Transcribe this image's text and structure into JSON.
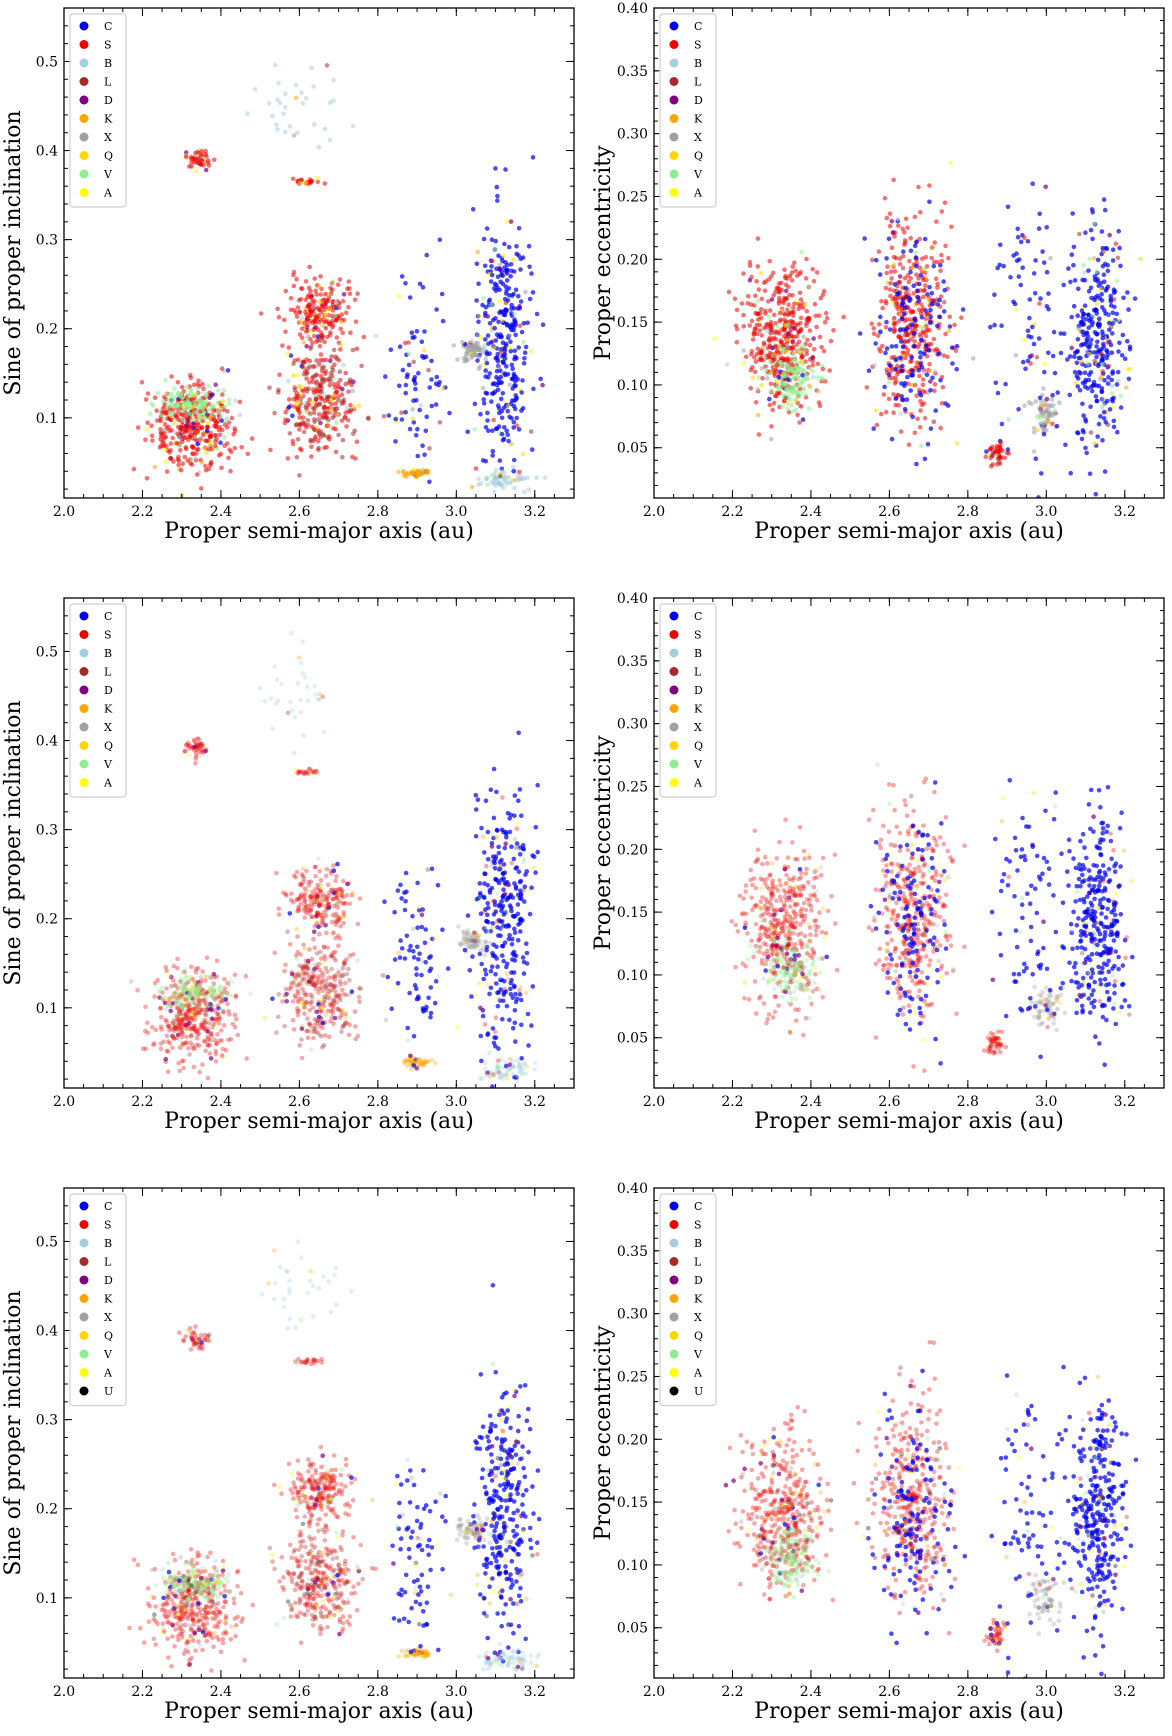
{
  "chart_data": [
    {
      "type": "scatter",
      "xlabel": "Proper semi-major axis (au)",
      "ylabel": "Sine of proper inclination",
      "xlim": [
        2.0,
        3.3
      ],
      "ylim": [
        0.01,
        0.56
      ],
      "xticks": [
        2.0,
        2.2,
        2.4,
        2.6,
        2.8,
        3.0,
        3.2
      ],
      "yticks": [
        0.1,
        0.2,
        0.3,
        0.4,
        0.5
      ],
      "legend_loc": "top-left",
      "series": [
        {
          "name": "C",
          "color": "#0000ee"
        },
        {
          "name": "S",
          "color": "#ee0000"
        },
        {
          "name": "B",
          "color": "#a6cee3"
        },
        {
          "name": "L",
          "color": "#a52a2a"
        },
        {
          "name": "D",
          "color": "#800080"
        },
        {
          "name": "K",
          "color": "#ffa500"
        },
        {
          "name": "X",
          "color": "#a0a0a0"
        },
        {
          "name": "Q",
          "color": "#ffd700"
        },
        {
          "name": "V",
          "color": "#90ee90"
        },
        {
          "name": "A",
          "color": "#ffff00"
        }
      ]
    },
    {
      "type": "scatter",
      "xlabel": "Proper semi-major axis (au)",
      "ylabel": "Proper eccentricity",
      "xlim": [
        2.0,
        3.3
      ],
      "ylim": [
        0.01,
        0.4
      ],
      "xticks": [
        2.0,
        2.2,
        2.4,
        2.6,
        2.8,
        3.0,
        3.2
      ],
      "yticks": [
        0.05,
        0.1,
        0.15,
        0.2,
        0.25,
        0.3,
        0.35,
        0.4
      ],
      "legend_loc": "top-left",
      "series": [
        {
          "name": "C",
          "color": "#0000ee"
        },
        {
          "name": "S",
          "color": "#ee0000"
        },
        {
          "name": "B",
          "color": "#a6cee3"
        },
        {
          "name": "L",
          "color": "#a52a2a"
        },
        {
          "name": "D",
          "color": "#800080"
        },
        {
          "name": "K",
          "color": "#ffa500"
        },
        {
          "name": "X",
          "color": "#a0a0a0"
        },
        {
          "name": "Q",
          "color": "#ffd700"
        },
        {
          "name": "V",
          "color": "#90ee90"
        },
        {
          "name": "A",
          "color": "#ffff00"
        }
      ]
    },
    {
      "type": "scatter",
      "xlabel": "Proper semi-major axis (au)",
      "ylabel": "Sine of proper inclination",
      "xlim": [
        2.0,
        3.3
      ],
      "ylim": [
        0.01,
        0.56
      ],
      "xticks": [
        2.0,
        2.2,
        2.4,
        2.6,
        2.8,
        3.0,
        3.2
      ],
      "yticks": [
        0.1,
        0.2,
        0.3,
        0.4,
        0.5
      ],
      "legend_loc": "top-left",
      "series": [
        {
          "name": "C",
          "color": "#0000ee"
        },
        {
          "name": "S",
          "color": "#ee0000"
        },
        {
          "name": "B",
          "color": "#a6cee3"
        },
        {
          "name": "L",
          "color": "#a52a2a"
        },
        {
          "name": "D",
          "color": "#800080"
        },
        {
          "name": "K",
          "color": "#ffa500"
        },
        {
          "name": "X",
          "color": "#a0a0a0"
        },
        {
          "name": "Q",
          "color": "#ffd700"
        },
        {
          "name": "V",
          "color": "#90ee90"
        },
        {
          "name": "A",
          "color": "#ffff00"
        }
      ]
    },
    {
      "type": "scatter",
      "xlabel": "Proper semi-major axis (au)",
      "ylabel": "Proper eccentricity",
      "xlim": [
        2.0,
        3.3
      ],
      "ylim": [
        0.01,
        0.4
      ],
      "xticks": [
        2.0,
        2.2,
        2.4,
        2.6,
        2.8,
        3.0,
        3.2
      ],
      "yticks": [
        0.05,
        0.1,
        0.15,
        0.2,
        0.25,
        0.3,
        0.35,
        0.4
      ],
      "legend_loc": "top-left",
      "series": [
        {
          "name": "C",
          "color": "#0000ee"
        },
        {
          "name": "S",
          "color": "#ee0000"
        },
        {
          "name": "B",
          "color": "#a6cee3"
        },
        {
          "name": "L",
          "color": "#a52a2a"
        },
        {
          "name": "D",
          "color": "#800080"
        },
        {
          "name": "K",
          "color": "#ffa500"
        },
        {
          "name": "X",
          "color": "#a0a0a0"
        },
        {
          "name": "Q",
          "color": "#ffd700"
        },
        {
          "name": "V",
          "color": "#90ee90"
        },
        {
          "name": "A",
          "color": "#ffff00"
        }
      ]
    },
    {
      "type": "scatter",
      "xlabel": "Proper semi-major axis (au)",
      "ylabel": "Sine of proper inclination",
      "xlim": [
        2.0,
        3.3
      ],
      "ylim": [
        0.01,
        0.56
      ],
      "xticks": [
        2.0,
        2.2,
        2.4,
        2.6,
        2.8,
        3.0,
        3.2
      ],
      "yticks": [
        0.1,
        0.2,
        0.3,
        0.4,
        0.5
      ],
      "legend_loc": "top-left",
      "series": [
        {
          "name": "C",
          "color": "#0000ee"
        },
        {
          "name": "S",
          "color": "#ee0000"
        },
        {
          "name": "B",
          "color": "#a6cee3"
        },
        {
          "name": "L",
          "color": "#a52a2a"
        },
        {
          "name": "D",
          "color": "#800080"
        },
        {
          "name": "K",
          "color": "#ffa500"
        },
        {
          "name": "X",
          "color": "#a0a0a0"
        },
        {
          "name": "Q",
          "color": "#ffd700"
        },
        {
          "name": "V",
          "color": "#90ee90"
        },
        {
          "name": "A",
          "color": "#ffff00"
        },
        {
          "name": "U",
          "color": "#000000"
        }
      ]
    },
    {
      "type": "scatter",
      "xlabel": "Proper semi-major axis (au)",
      "ylabel": "Proper eccentricity",
      "xlim": [
        2.0,
        3.3
      ],
      "ylim": [
        0.01,
        0.4
      ],
      "xticks": [
        2.0,
        2.2,
        2.4,
        2.6,
        2.8,
        3.0,
        3.2
      ],
      "yticks": [
        0.05,
        0.1,
        0.15,
        0.2,
        0.25,
        0.3,
        0.35,
        0.4
      ],
      "legend_loc": "top-left",
      "series": [
        {
          "name": "C",
          "color": "#0000ee"
        },
        {
          "name": "S",
          "color": "#ee0000"
        },
        {
          "name": "B",
          "color": "#a6cee3"
        },
        {
          "name": "L",
          "color": "#a52a2a"
        },
        {
          "name": "D",
          "color": "#800080"
        },
        {
          "name": "K",
          "color": "#ffa500"
        },
        {
          "name": "X",
          "color": "#a0a0a0"
        },
        {
          "name": "Q",
          "color": "#ffd700"
        },
        {
          "name": "V",
          "color": "#90ee90"
        },
        {
          "name": "A",
          "color": "#ffff00"
        },
        {
          "name": "U",
          "color": "#000000"
        }
      ]
    }
  ]
}
